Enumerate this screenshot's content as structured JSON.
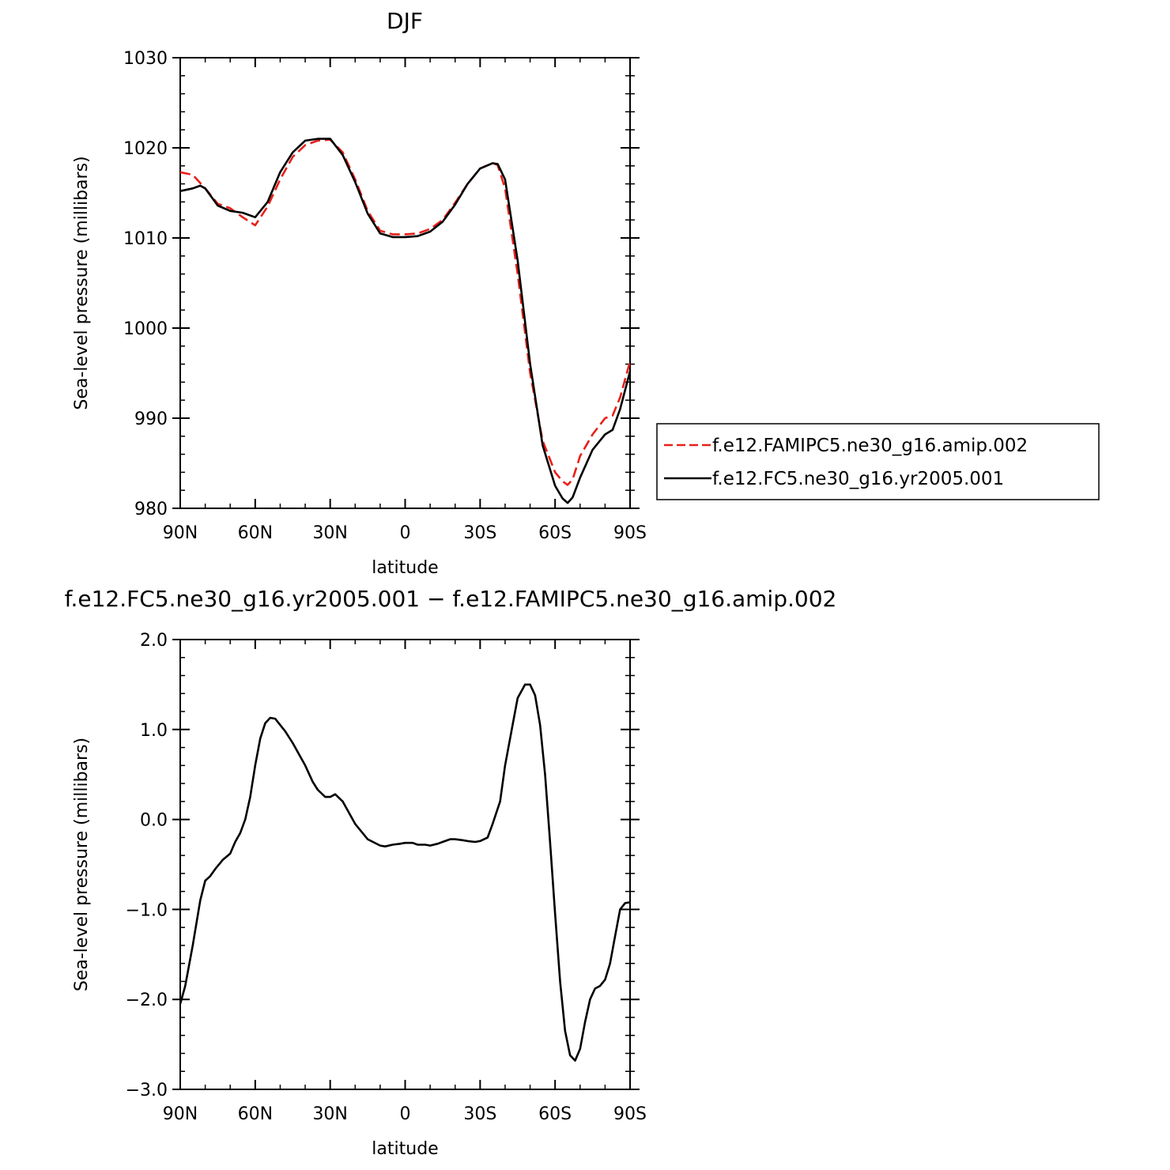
{
  "chart_data": [
    {
      "type": "line",
      "title": "DJF",
      "xlabel": "latitude",
      "ylabel": "Sea-level pressure (millibars)",
      "xlim": [
        90,
        -90
      ],
      "ylim": [
        980,
        1030
      ],
      "xticks": [
        90,
        60,
        30,
        0,
        -30,
        -60,
        -90
      ],
      "xtick_labels": [
        "90N",
        "60N",
        "30N",
        "0",
        "30S",
        "60S",
        "90S"
      ],
      "yticks": [
        980,
        990,
        1000,
        1010,
        1020,
        1030
      ],
      "ytick_labels": [
        "980",
        "990",
        "1000",
        "1010",
        "1020",
        "1030"
      ],
      "legend_position": "right",
      "grid": false,
      "series": [
        {
          "name": "f.e12.FAMIPC5.ne30_g16.amip.002",
          "color": "#e8201a",
          "style": "dashed",
          "x": [
            90,
            85,
            80,
            75,
            70,
            65,
            60,
            55,
            50,
            45,
            40,
            35,
            30,
            25,
            20,
            15,
            10,
            5,
            0,
            -5,
            -10,
            -15,
            -20,
            -25,
            -30,
            -35,
            -37,
            -40,
            -45,
            -50,
            -55,
            -60,
            -63,
            -65,
            -67,
            -70,
            -75,
            -80,
            -83,
            -86,
            -90
          ],
          "y": [
            1017.3,
            1017.0,
            1015.5,
            1013.8,
            1013.3,
            1012.3,
            1011.4,
            1013.5,
            1016.5,
            1019.0,
            1020.3,
            1020.8,
            1020.9,
            1019.5,
            1016.5,
            1013.0,
            1010.8,
            1010.4,
            1010.4,
            1010.5,
            1011.0,
            1012.0,
            1013.9,
            1016.0,
            1017.7,
            1018.3,
            1018.1,
            1015.5,
            1006.0,
            995.0,
            987.5,
            984.0,
            983.0,
            982.6,
            983.2,
            985.8,
            988.2,
            990.0,
            990.3,
            992.3,
            996.3
          ]
        },
        {
          "name": "f.e12.FC5.ne30_g16.yr2005.001",
          "color": "#000000",
          "style": "solid",
          "x": [
            90,
            85,
            82,
            80,
            75,
            70,
            65,
            60,
            55,
            50,
            45,
            40,
            35,
            30,
            25,
            20,
            15,
            10,
            5,
            0,
            -5,
            -10,
            -15,
            -20,
            -25,
            -30,
            -35,
            -37,
            -40,
            -45,
            -50,
            -55,
            -60,
            -63,
            -65,
            -67,
            -70,
            -75,
            -80,
            -83,
            -86,
            -90
          ],
          "y": [
            1015.2,
            1015.5,
            1015.8,
            1015.5,
            1013.6,
            1013.0,
            1012.8,
            1012.3,
            1014.0,
            1017.3,
            1019.5,
            1020.8,
            1021.0,
            1021.0,
            1019.2,
            1016.2,
            1012.7,
            1010.5,
            1010.1,
            1010.1,
            1010.2,
            1010.7,
            1011.8,
            1013.7,
            1016.0,
            1017.7,
            1018.3,
            1018.2,
            1016.5,
            1007.5,
            996.0,
            987.0,
            982.5,
            981.1,
            980.6,
            981.2,
            983.4,
            986.5,
            988.2,
            988.7,
            991.0,
            995.2
          ]
        }
      ]
    },
    {
      "type": "line",
      "title": "f.e12.FC5.ne30_g16.yr2005.001 − f.e12.FAMIPC5.ne30_g16.amip.002",
      "xlabel": "latitude",
      "ylabel": "Sea-level pressure (millibars)",
      "xlim": [
        90,
        -90
      ],
      "ylim": [
        -3.0,
        2.0
      ],
      "xticks": [
        90,
        60,
        30,
        0,
        -30,
        -60,
        -90
      ],
      "xtick_labels": [
        "90N",
        "60N",
        "30N",
        "0",
        "30S",
        "60S",
        "90S"
      ],
      "yticks": [
        -3.0,
        -2.0,
        -1.0,
        0.0,
        1.0,
        2.0
      ],
      "ytick_labels": [
        "−3.0",
        "−2.0",
        "−1.0",
        "0.0",
        "1.0",
        "2.0"
      ],
      "grid": false,
      "series": [
        {
          "color": "#000000",
          "style": "solid",
          "x": [
            90,
            88,
            85,
            82,
            80,
            78,
            76,
            73,
            70,
            68,
            66,
            64,
            62,
            60,
            58,
            56,
            54,
            52,
            50,
            48,
            45,
            40,
            37,
            35,
            32,
            30,
            28,
            25,
            20,
            15,
            10,
            8,
            5,
            2,
            0,
            -3,
            -5,
            -8,
            -10,
            -13,
            -15,
            -18,
            -20,
            -23,
            -25,
            -28,
            -30,
            -33,
            -35,
            -38,
            -40,
            -43,
            -45,
            -48,
            -50,
            -52,
            -54,
            -56,
            -58,
            -60,
            -62,
            -64,
            -66,
            -68,
            -70,
            -72,
            -74,
            -76,
            -78,
            -80,
            -82,
            -84,
            -86,
            -88,
            -90
          ],
          "y": [
            -2.05,
            -1.85,
            -1.4,
            -0.9,
            -0.68,
            -0.63,
            -0.55,
            -0.45,
            -0.38,
            -0.25,
            -0.15,
            0.0,
            0.25,
            0.6,
            0.9,
            1.07,
            1.13,
            1.12,
            1.05,
            0.98,
            0.85,
            0.6,
            0.42,
            0.33,
            0.25,
            0.25,
            0.28,
            0.2,
            -0.05,
            -0.22,
            -0.29,
            -0.3,
            -0.28,
            -0.27,
            -0.26,
            -0.26,
            -0.28,
            -0.28,
            -0.29,
            -0.27,
            -0.25,
            -0.22,
            -0.22,
            -0.23,
            -0.24,
            -0.25,
            -0.24,
            -0.2,
            -0.05,
            0.2,
            0.6,
            1.05,
            1.35,
            1.5,
            1.5,
            1.38,
            1.05,
            0.5,
            -0.25,
            -1.05,
            -1.8,
            -2.35,
            -2.62,
            -2.68,
            -2.55,
            -2.25,
            -2.0,
            -1.88,
            -1.85,
            -1.78,
            -1.6,
            -1.3,
            -1.0,
            -0.93,
            -0.92
          ]
        }
      ]
    }
  ]
}
